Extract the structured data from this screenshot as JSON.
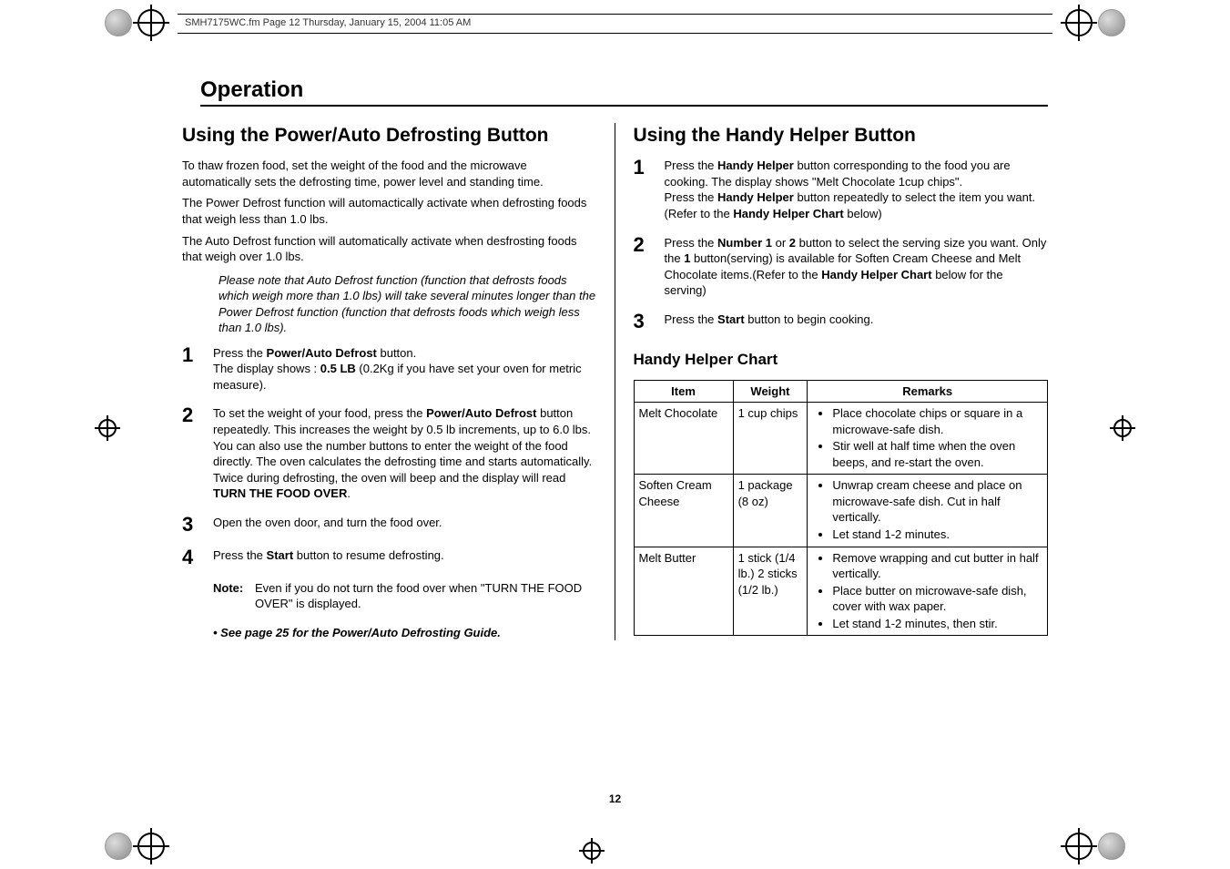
{
  "header_meta": "SMH7175WC.fm  Page 12  Thursday, January 15, 2004  11:05 AM",
  "section_title": "Operation",
  "page_number": "12",
  "left": {
    "heading": "Using the Power/Auto Defrosting Button",
    "intro1": "To thaw frozen food, set the weight of the food and the microwave automatically sets the defrosting time, power level and standing time.",
    "intro2": "The Power Defrost function will automactically activate when defrosting foods that weigh less than 1.0 lbs.",
    "intro3": "The Auto Defrost function will automatically activate when desfrosting foods that weigh over 1.0 lbs.",
    "note_italic": "Please note that Auto Defrost function (function  that defrosts foods which weigh more than 1.0 lbs) will take several minutes longer than the Power Defrost function (function that defrosts foods which weigh less than 1.0 lbs).",
    "steps": [
      {
        "num": "1",
        "p1_a": "Press the ",
        "p1_b": "Power/Auto Defrost",
        "p1_c": " button.",
        "p2_a": "The display shows : ",
        "p2_b": "0.5 LB",
        "p2_c": " (0.2Kg if you have set your oven for metric measure)."
      },
      {
        "num": "2",
        "p1_a": "To set the weight of your food, press the ",
        "p1_b": "Power/Auto Defrost",
        "p1_c": " button repeatedly. This increases the weight by 0.5 lb increments, up to 6.0 lbs. You can also use the number buttons to enter the weight of the food directly. The oven calculates the defrosting time and starts automatically.",
        "p2_a": "Twice during defrosting, the oven will beep and the display will read ",
        "p2_b": "TURN THE FOOD OVER",
        "p2_c": "."
      },
      {
        "num": "3",
        "p1": "Open the oven door, and turn the food over."
      },
      {
        "num": "4",
        "p1_a": "Press the ",
        "p1_b": "Start",
        "p1_c": " button to resume defrosting."
      }
    ],
    "note_label": "Note:",
    "note_text": "Even if you do not turn the food over when \"TURN THE FOOD OVER\" is displayed.",
    "see_also": "See page 25 for the Power/Auto Defrosting Guide."
  },
  "right": {
    "heading": "Using the Handy Helper Button",
    "steps": [
      {
        "num": "1",
        "l1_a": "Press the ",
        "l1_b": "Handy Helper",
        "l1_c": " button corresponding to the food you are cooking. The display shows \"Melt Chocolate 1cup chips\".",
        "l2_a": "Press the ",
        "l2_b": "Handy Helper",
        "l2_c": " button repeatedly to select the item you want.(Refer to the ",
        "l2_d": "Handy Helper Chart",
        "l2_e": " below)"
      },
      {
        "num": "2",
        "l1_a": "Press the ",
        "l1_b": "Number 1",
        "l1_c": " or ",
        "l1_d": "2",
        "l1_e": " button to select the serving size you want. Only the ",
        "l1_f": "1",
        "l1_g": " button(serving) is available for Soften Cream Cheese and Melt Chocolate items.(Refer to the ",
        "l1_h": "Handy Helper Chart",
        "l1_i": " below for the serving)"
      },
      {
        "num": "3",
        "l1_a": "Press the ",
        "l1_b": "Start",
        "l1_c": " button to begin cooking."
      }
    ],
    "chart_title": "Handy Helper Chart",
    "chart": {
      "columns": [
        "Item",
        "Weight",
        "Remarks"
      ],
      "rows": [
        {
          "item": "Melt Chocolate",
          "weight": "1 cup chips",
          "remarks": [
            "Place chocolate chips or square in a microwave-safe dish.",
            "Stir well at half time when the oven beeps, and re-start the oven."
          ]
        },
        {
          "item": "Soften Cream Cheese",
          "weight": "1 package (8 oz)",
          "remarks": [
            "Unwrap cream cheese and place on microwave-safe dish. Cut in half vertically.",
            "Let stand 1-2 minutes."
          ]
        },
        {
          "item": "Melt Butter",
          "weight": "1 stick (1/4 lb.) 2 sticks (1/2 lb.)",
          "remarks": [
            "Remove wrapping and cut butter in half vertically.",
            "Place butter on microwave-safe dish, cover with wax paper.",
            "Let stand 1-2 minutes, then stir."
          ]
        }
      ]
    }
  }
}
